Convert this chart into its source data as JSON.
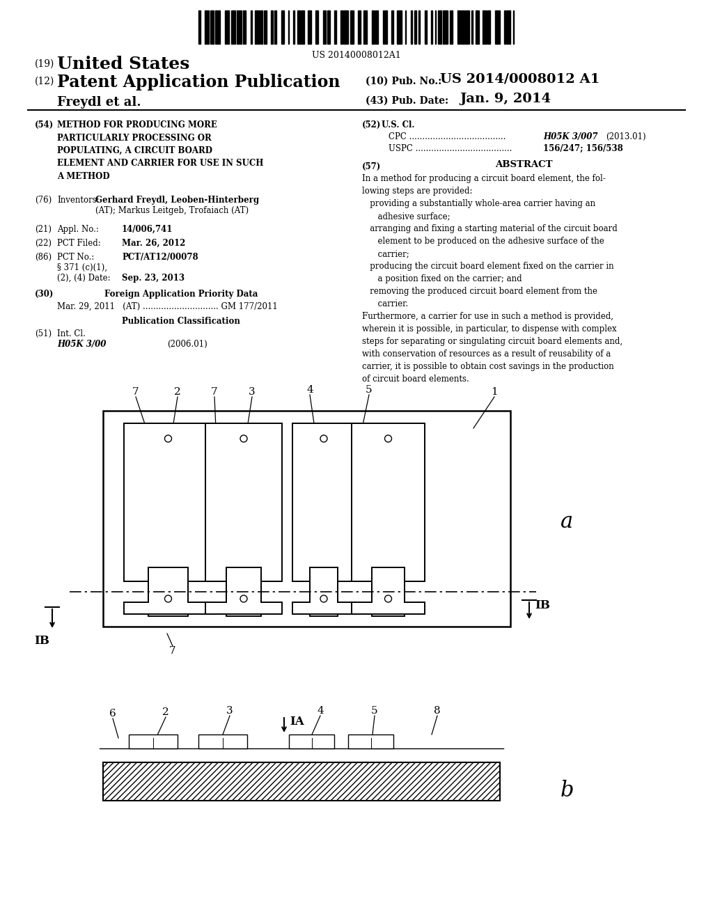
{
  "bg_color": "#ffffff",
  "barcode_text": "US 20140008012A1",
  "title_19_num": "(19)",
  "title_19_text": "United States",
  "title_12_num": "(12)",
  "title_12_text": "Patent Application Publication",
  "pub_no_num": "(10) Pub. No.:",
  "pub_no_val": "US 2014/0008012 A1",
  "inventor_name": "Freydl et al.",
  "pub_date_num": "(43) Pub. Date:",
  "pub_date_val": "Jan. 9, 2014",
  "f54_num": "(54)",
  "f54_text": "METHOD FOR PRODUCING MORE\nPARTICULARLY PROCESSING OR\nPOPULATING, A CIRCUIT BOARD\nELEMENT AND CARRIER FOR USE IN SUCH\nA METHOD",
  "f76_num": "(76)",
  "f76_text_a": "Inventors:",
  "f76_text_b": "Gerhard Freydl, Leoben-Hinterberg",
  "f76_text_c": "(AT); Markus Leitgeb, Trofaiach (AT)",
  "f21_num": "(21)",
  "f21_label": "Appl. No.:",
  "f21_val": "14/006,741",
  "f22_num": "(22)",
  "f22_label": "PCT Filed:",
  "f22_val": "Mar. 26, 2012",
  "f86_num": "(86)",
  "f86_label": "PCT No.:",
  "f86_val": "PCT/AT12/00078",
  "f86_sub1": "§ 371 (c)(1),",
  "f86_sub2": "(2), (4) Date:",
  "f86_sub2_val": "Sep. 23, 2013",
  "f30_num": "(30)",
  "f30_label": "Foreign Application Priority Data",
  "f30_detail": "Mar. 29, 2011   (AT) ............................. GM 177/2011",
  "pub_class": "Publication Classification",
  "f51_num": "(51)",
  "f51_label": "Int. Cl.",
  "f51_class": "H05K 3/00",
  "f51_year": "(2006.01)",
  "f52_num": "(52)",
  "f52_label": "U.S. Cl.",
  "f52_cpc_label": "CPC",
  "f52_cpc_dots": " .....................................",
  "f52_cpc_val": "H05K 3/007",
  "f52_cpc_year": "(2013.01)",
  "f52_uspc_label": "USPC",
  "f52_uspc_dots": " .....................................",
  "f52_uspc_val": "156/247; 156/538",
  "f57_num": "(57)",
  "f57_title": "ABSTRACT",
  "abstract": "In a method for producing a circuit board element, the fol-\nlowing steps are provided:\n   providing a substantially whole-area carrier having an\n      adhesive surface;\n   arranging and fixing a starting material of the circuit board\n      element to be produced on the adhesive surface of the\n      carrier;\n   producing the circuit board element fixed on the carrier in\n      a position fixed on the carrier; and\n   removing the produced circuit board element from the\n      carrier.\nFurthermore, a carrier for use in such a method is provided,\nwherein it is possible, in particular, to dispense with complex\nsteps for separating or singulating circuit board elements and,\nwith conservation of resources as a result of reusability of a\ncarrier, it is possible to obtain cost savings in the production\nof circuit board elements."
}
